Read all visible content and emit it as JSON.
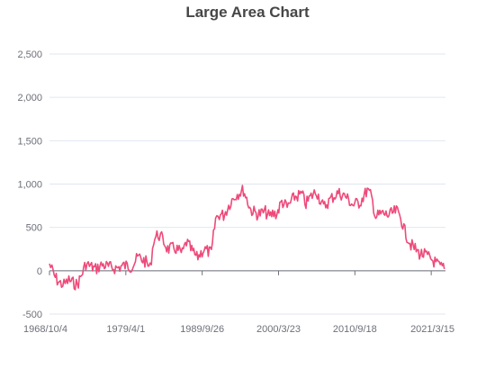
{
  "chart_data": {
    "type": "area",
    "title": "Large Area Chart",
    "xlabel": "",
    "ylabel": "",
    "ylim": [
      -500,
      2500
    ],
    "yticks": [
      "-500",
      "0",
      "500",
      "1,000",
      "1,500",
      "2,000",
      "2,500"
    ],
    "xticks": [
      "1968/10/4",
      "1979/4/1",
      "1989/9/26",
      "2000/3/23",
      "2010/9/18",
      "2021/3/15"
    ],
    "xrange": [
      "1968/10/4",
      "2023/3/1"
    ],
    "grid": true,
    "legend": "none",
    "colors": {
      "line": "#ee4a7a",
      "grid": "#e0e6f1",
      "axis": "#6e7079"
    },
    "series": [
      {
        "x": [
          "1968/10/4",
          "1969/6/1",
          "1970/2/1",
          "1970/10/1",
          "1971/6/1",
          "1972/1/1",
          "1972/8/1",
          "1973/3/1",
          "1973/10/1",
          "1974/6/1",
          "1975/2/1",
          "1976/1/1",
          "1977/1/1",
          "1978/1/1",
          "1979/1/1",
          "1980/1/1",
          "1981/1/1",
          "1982/1/1",
          "1982/8/1",
          "1983/2/1",
          "1983/9/1",
          "1984/3/1",
          "1985/1/1",
          "1986/1/1",
          "1987/1/1",
          "1987/8/1",
          "1988/3/1",
          "1989/1/1",
          "1990/1/1",
          "1991/1/1",
          "1991/8/1",
          "1992/2/1",
          "1992/9/1",
          "1993/2/1",
          "1993/9/1",
          "1994/6/1",
          "1995/6/1",
          "1996/6/1",
          "1997/6/1",
          "1998/6/1",
          "1999/1/1",
          "1999/6/1",
          "2000/1/1",
          "2000/9/1",
          "2001/6/1",
          "2002/6/1",
          "2003/6/1",
          "2004/1/1",
          "2004/6/1",
          "2005/6/1",
          "2006/6/1",
          "2007/6/1",
          "2008/6/1",
          "2009/6/1",
          "2010/6/1",
          "2011/6/1",
          "2012/6/1",
          "2013/1/1",
          "2013/8/1",
          "2014/6/1",
          "2015/6/1",
          "2016/6/1",
          "2017/1/1",
          "2017/8/1",
          "2018/6/1",
          "2019/1/1",
          "2019/8/1",
          "2020/6/1",
          "2021/6/1",
          "2022/3/1",
          "2023/1/1"
        ],
        "y": [
          80,
          -60,
          -140,
          -160,
          -110,
          -140,
          -160,
          -50,
          80,
          50,
          20,
          70,
          40,
          30,
          60,
          50,
          160,
          100,
          30,
          360,
          420,
          380,
          250,
          260,
          200,
          330,
          250,
          150,
          250,
          200,
          600,
          650,
          640,
          700,
          800,
          880,
          930,
          700,
          650,
          680,
          620,
          660,
          660,
          800,
          730,
          850,
          880,
          770,
          830,
          920,
          730,
          830,
          900,
          860,
          760,
          790,
          930,
          850,
          620,
          660,
          640,
          690,
          620,
          450,
          300,
          250,
          200,
          180,
          120,
          60,
          20
        ]
      }
    ]
  }
}
